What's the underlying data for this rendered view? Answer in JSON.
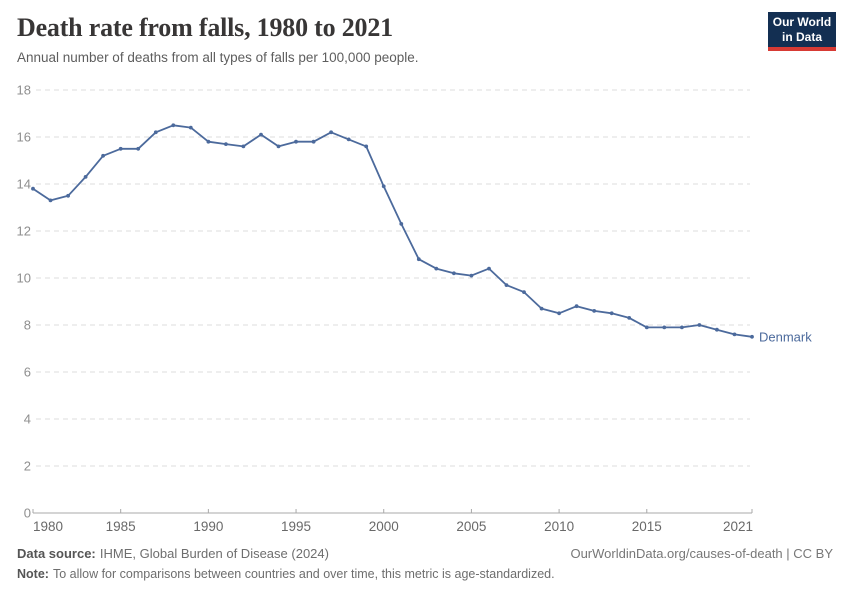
{
  "header": {
    "title": "Death rate from falls, 1980 to 2021",
    "subtitle": "Annual number of deaths from all types of falls per 100,000 people.",
    "logo": {
      "line1": "Our World",
      "line2": "in Data",
      "bg_color": "#132f52",
      "accent_color": "#d73a34"
    }
  },
  "chart_data": {
    "type": "line",
    "title": "Death rate from falls, 1980 to 2021",
    "subtitle": "Annual number of deaths from all types of falls per 100,000 people.",
    "x": [
      1980,
      1981,
      1982,
      1983,
      1984,
      1985,
      1986,
      1987,
      1988,
      1989,
      1990,
      1991,
      1992,
      1993,
      1994,
      1995,
      1996,
      1997,
      1998,
      1999,
      2000,
      2001,
      2002,
      2003,
      2004,
      2005,
      2006,
      2007,
      2008,
      2009,
      2010,
      2011,
      2012,
      2013,
      2014,
      2015,
      2016,
      2017,
      2018,
      2019,
      2020,
      2021
    ],
    "series": [
      {
        "name": "Denmark",
        "color": "#4c6a9c",
        "values": [
          13.8,
          13.3,
          13.5,
          14.3,
          15.2,
          15.5,
          15.5,
          16.2,
          16.5,
          16.4,
          15.8,
          15.7,
          15.6,
          16.1,
          15.6,
          15.8,
          15.8,
          16.2,
          15.9,
          15.6,
          13.9,
          12.3,
          10.8,
          10.4,
          10.2,
          10.1,
          10.4,
          9.7,
          9.4,
          8.7,
          8.5,
          8.8,
          8.6,
          8.5,
          8.3,
          7.9,
          7.9,
          7.9,
          8.0,
          7.8,
          7.6,
          7.5
        ]
      }
    ],
    "xlabel": "",
    "ylabel": "",
    "ylim": [
      0,
      18
    ],
    "yticks": [
      0,
      2,
      4,
      6,
      8,
      10,
      12,
      14,
      16,
      18
    ],
    "xticks": [
      1980,
      1985,
      1990,
      1995,
      2000,
      2005,
      2010,
      2015,
      2021
    ],
    "grid": "horizontal-dashed",
    "legend": "label-at-line-end",
    "end_label": "Denmark"
  },
  "footer": {
    "data_source_label": "Data source:",
    "data_source_value": "IHME, Global Burden of Disease (2024)",
    "attribution": "OurWorldinData.org/causes-of-death | CC BY",
    "note_label": "Note:",
    "note_value": "To allow for comparisons between countries and over time, this metric is age-standardized."
  },
  "colors": {
    "line": "#4c6a9c",
    "grid": "#dcdcdc",
    "axis": "#a8a8a8",
    "y_tick_label": "#8f8f8f",
    "x_tick_label": "#696969",
    "title": "#383636",
    "subtitle": "#5e5e5e"
  }
}
